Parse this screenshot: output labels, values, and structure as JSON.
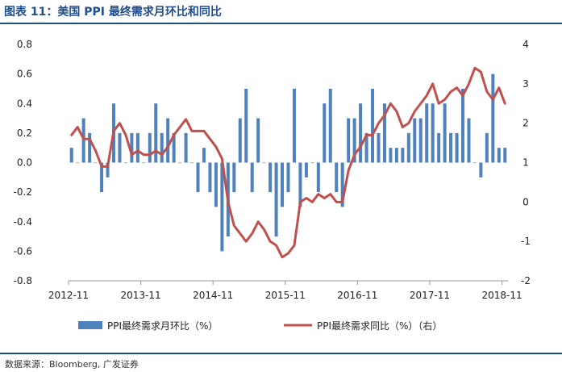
{
  "header": {
    "title": "图表 11：美国 PPI 最终需求月环比和同比"
  },
  "footer": {
    "source": "数据来源：Bloomberg, 广发证券"
  },
  "chart_data": {
    "type": "bar",
    "x_tick_labels": [
      "2012-11",
      "2013-11",
      "2014-11",
      "2015-11",
      "2016-11",
      "2017-11",
      "2018-11"
    ],
    "y_left": {
      "range": [
        -0.8,
        0.8
      ],
      "ticks": [
        "0.8",
        "0.6",
        "0.4",
        "0.2",
        "0.0",
        "-0.2",
        "-0.4",
        "-0.6",
        "-0.8"
      ]
    },
    "y_right": {
      "range": [
        -2,
        4
      ],
      "ticks": [
        "4",
        "3",
        "2",
        "1",
        "0",
        "-1",
        "-2"
      ]
    },
    "grid": false,
    "legend_position": "bottom",
    "months": [
      "2012-11",
      "2012-12",
      "2013-01",
      "2013-02",
      "2013-03",
      "2013-04",
      "2013-05",
      "2013-06",
      "2013-07",
      "2013-08",
      "2013-09",
      "2013-10",
      "2013-11",
      "2013-12",
      "2014-01",
      "2014-02",
      "2014-03",
      "2014-04",
      "2014-05",
      "2014-06",
      "2014-07",
      "2014-08",
      "2014-09",
      "2014-10",
      "2014-11",
      "2014-12",
      "2015-01",
      "2015-02",
      "2015-03",
      "2015-04",
      "2015-05",
      "2015-06",
      "2015-07",
      "2015-08",
      "2015-09",
      "2015-10",
      "2015-11",
      "2015-12",
      "2016-01",
      "2016-02",
      "2016-03",
      "2016-04",
      "2016-05",
      "2016-06",
      "2016-07",
      "2016-08",
      "2016-09",
      "2016-10",
      "2016-11",
      "2016-12",
      "2017-01",
      "2017-02",
      "2017-03",
      "2017-04",
      "2017-05",
      "2017-06",
      "2017-07",
      "2017-08",
      "2017-09",
      "2017-10",
      "2017-11",
      "2017-12",
      "2018-01",
      "2018-02",
      "2018-03",
      "2018-04",
      "2018-05",
      "2018-06",
      "2018-07",
      "2018-08",
      "2018-09",
      "2018-10",
      "2018-11"
    ],
    "series": [
      {
        "name": "PPI最终需求月环比（%）",
        "type": "bar",
        "axis": "left",
        "color": "#4f81bd",
        "values": [
          0.1,
          0.0,
          0.3,
          0.2,
          0.0,
          -0.2,
          -0.1,
          0.4,
          0.2,
          0.0,
          0.2,
          0.2,
          0.0,
          0.2,
          0.4,
          0.2,
          0.3,
          0.2,
          0.0,
          0.2,
          0.0,
          -0.2,
          0.1,
          -0.2,
          -0.3,
          -0.6,
          -0.5,
          -0.2,
          0.3,
          0.5,
          -0.2,
          0.3,
          0.0,
          -0.2,
          -0.5,
          -0.3,
          -0.2,
          0.5,
          -0.3,
          -0.1,
          0.0,
          -0.2,
          0.4,
          0.5,
          -0.2,
          -0.3,
          0.3,
          0.3,
          0.4,
          0.2,
          0.5,
          0.2,
          0.4,
          0.1,
          0.1,
          0.1,
          0.2,
          0.3,
          0.3,
          0.4,
          0.4,
          0.2,
          0.4,
          0.2,
          0.2,
          0.5,
          0.3,
          0.0,
          -0.1,
          0.2,
          0.6,
          0.1,
          0.1
        ]
      },
      {
        "name": "PPI最终需求同比（%）（右）",
        "type": "line",
        "axis": "right",
        "color": "#c0504d",
        "values": [
          1.7,
          1.9,
          1.6,
          1.6,
          1.3,
          0.9,
          0.9,
          1.8,
          2.0,
          1.7,
          1.2,
          1.3,
          1.2,
          1.2,
          1.3,
          1.2,
          1.4,
          1.7,
          1.9,
          2.1,
          1.8,
          1.8,
          1.8,
          1.6,
          1.4,
          1.1,
          0.0,
          -0.6,
          -0.8,
          -1.0,
          -0.8,
          -0.5,
          -0.7,
          -1.0,
          -1.1,
          -1.4,
          -1.3,
          -1.1,
          0.0,
          0.1,
          0.0,
          0.2,
          0.1,
          0.2,
          0.0,
          0.0,
          0.8,
          1.2,
          1.4,
          1.7,
          1.7,
          2.0,
          2.2,
          2.5,
          2.3,
          1.9,
          2.0,
          2.3,
          2.5,
          2.7,
          3.0,
          2.5,
          2.6,
          2.8,
          2.9,
          2.7,
          3.0,
          3.4,
          3.3,
          2.8,
          2.6,
          2.9,
          2.5
        ]
      }
    ]
  }
}
